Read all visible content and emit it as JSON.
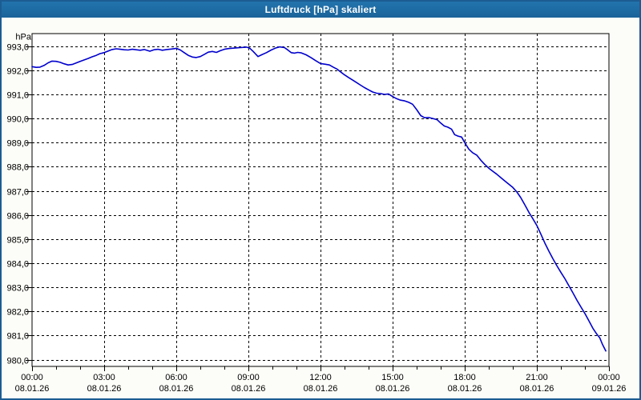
{
  "window": {
    "title": "Luftdruck [hPa] skaliert"
  },
  "colors": {
    "titlebar_bg": "#1e6ba3",
    "window_border": "#1c5c92",
    "outer_bg": "#fafaf5",
    "plot_bg": "#ffffff",
    "grid": "#000000",
    "curve": "#0000cd",
    "label_text": "#000000"
  },
  "chart_data": {
    "type": "line",
    "title": "Luftdruck [hPa] skaliert",
    "ylabel": "hPa",
    "unit_label": "hPa",
    "grid": "dashed",
    "ylim": [
      980,
      993
    ],
    "y_tick_step": 1,
    "y_tick_labels": [
      "993,0",
      "992,0",
      "991,0",
      "990,0",
      "989,0",
      "988,0",
      "987,0",
      "986,0",
      "985,0",
      "984,0",
      "983,0",
      "982,0",
      "981,0",
      "980,0"
    ],
    "x_hours_range": [
      0,
      24
    ],
    "x_major_step_hours": 3,
    "x_minor_step_hours": 1,
    "x_ticks": [
      {
        "time": "00:00",
        "date": "08.01.26"
      },
      {
        "time": "03:00",
        "date": "08.01.26"
      },
      {
        "time": "06:00",
        "date": "08.01.26"
      },
      {
        "time": "09:00",
        "date": "08.01.26"
      },
      {
        "time": "12:00",
        "date": "08.01.26"
      },
      {
        "time": "15:00",
        "date": "08.01.26"
      },
      {
        "time": "18:00",
        "date": "08.01.26"
      },
      {
        "time": "21:00",
        "date": "08.01.26"
      },
      {
        "time": "00:00",
        "date": "09.01.26"
      }
    ],
    "series": [
      {
        "name": "Luftdruck",
        "color": "#0000cd",
        "points": [
          [
            0,
            992.15
          ],
          [
            0.17,
            992.12
          ],
          [
            0.33,
            992.13
          ],
          [
            0.5,
            992.2
          ],
          [
            0.67,
            992.31
          ],
          [
            0.83,
            992.38
          ],
          [
            1.0,
            992.37
          ],
          [
            1.17,
            992.33
          ],
          [
            1.33,
            992.27
          ],
          [
            1.5,
            992.22
          ],
          [
            1.67,
            992.24
          ],
          [
            1.83,
            992.3
          ],
          [
            2.0,
            992.37
          ],
          [
            2.17,
            992.43
          ],
          [
            2.33,
            992.49
          ],
          [
            2.5,
            992.56
          ],
          [
            2.67,
            992.62
          ],
          [
            2.83,
            992.69
          ],
          [
            3.0,
            992.73
          ],
          [
            3.17,
            992.8
          ],
          [
            3.33,
            992.86
          ],
          [
            3.5,
            992.89
          ],
          [
            3.67,
            992.87
          ],
          [
            3.83,
            992.85
          ],
          [
            4.0,
            992.84
          ],
          [
            4.17,
            992.87
          ],
          [
            4.33,
            992.85
          ],
          [
            4.5,
            992.83
          ],
          [
            4.67,
            992.86
          ],
          [
            4.9,
            992.79
          ],
          [
            5.07,
            992.85
          ],
          [
            5.25,
            992.87
          ],
          [
            5.42,
            992.83
          ],
          [
            5.6,
            992.86
          ],
          [
            5.8,
            992.88
          ],
          [
            6.0,
            992.91
          ],
          [
            6.17,
            992.84
          ],
          [
            6.33,
            992.73
          ],
          [
            6.5,
            992.62
          ],
          [
            6.67,
            992.55
          ],
          [
            6.83,
            992.53
          ],
          [
            7.0,
            992.57
          ],
          [
            7.17,
            992.66
          ],
          [
            7.33,
            992.75
          ],
          [
            7.5,
            992.78
          ],
          [
            7.67,
            992.74
          ],
          [
            7.83,
            992.81
          ],
          [
            8.0,
            992.87
          ],
          [
            8.17,
            992.9
          ],
          [
            8.42,
            992.92
          ],
          [
            8.67,
            992.94
          ],
          [
            8.92,
            992.96
          ],
          [
            9.05,
            992.92
          ],
          [
            9.2,
            992.78
          ],
          [
            9.4,
            992.57
          ],
          [
            9.55,
            992.64
          ],
          [
            9.75,
            992.73
          ],
          [
            9.95,
            992.84
          ],
          [
            10.15,
            992.93
          ],
          [
            10.3,
            992.97
          ],
          [
            10.5,
            992.94
          ],
          [
            10.63,
            992.85
          ],
          [
            10.78,
            992.73
          ],
          [
            10.92,
            992.71
          ],
          [
            11.05,
            992.74
          ],
          [
            11.2,
            992.72
          ],
          [
            11.4,
            992.64
          ],
          [
            11.6,
            992.53
          ],
          [
            11.8,
            992.4
          ],
          [
            12.0,
            992.28
          ],
          [
            12.2,
            992.25
          ],
          [
            12.37,
            992.22
          ],
          [
            12.53,
            992.13
          ],
          [
            12.7,
            992.04
          ],
          [
            12.85,
            991.92
          ],
          [
            13.0,
            991.81
          ],
          [
            13.17,
            991.7
          ],
          [
            13.33,
            991.6
          ],
          [
            13.5,
            991.49
          ],
          [
            13.67,
            991.38
          ],
          [
            13.83,
            991.28
          ],
          [
            14.0,
            991.19
          ],
          [
            14.17,
            991.1
          ],
          [
            14.33,
            991.05
          ],
          [
            14.5,
            991.03
          ],
          [
            14.67,
            991.0
          ],
          [
            14.83,
            991.02
          ],
          [
            15.0,
            990.91
          ],
          [
            15.17,
            990.82
          ],
          [
            15.33,
            990.76
          ],
          [
            15.5,
            990.73
          ],
          [
            15.67,
            990.67
          ],
          [
            15.83,
            990.59
          ],
          [
            16.0,
            990.37
          ],
          [
            16.17,
            990.12
          ],
          [
            16.33,
            990.03
          ],
          [
            16.5,
            990.04
          ],
          [
            16.67,
            990.0
          ],
          [
            16.85,
            989.95
          ],
          [
            17.0,
            989.81
          ],
          [
            17.15,
            989.69
          ],
          [
            17.3,
            989.64
          ],
          [
            17.45,
            989.56
          ],
          [
            17.58,
            989.33
          ],
          [
            17.72,
            989.27
          ],
          [
            17.87,
            989.23
          ],
          [
            18.0,
            989.0
          ],
          [
            18.17,
            988.73
          ],
          [
            18.33,
            988.58
          ],
          [
            18.5,
            988.48
          ],
          [
            18.67,
            988.27
          ],
          [
            18.83,
            988.1
          ],
          [
            19.0,
            987.94
          ],
          [
            19.17,
            987.81
          ],
          [
            19.33,
            987.69
          ],
          [
            19.5,
            987.55
          ],
          [
            19.67,
            987.41
          ],
          [
            19.83,
            987.28
          ],
          [
            20.0,
            987.14
          ],
          [
            20.17,
            986.95
          ],
          [
            20.33,
            986.72
          ],
          [
            20.5,
            986.42
          ],
          [
            20.67,
            986.11
          ],
          [
            20.83,
            985.85
          ],
          [
            21.0,
            985.56
          ],
          [
            21.17,
            985.2
          ],
          [
            21.33,
            984.84
          ],
          [
            21.5,
            984.5
          ],
          [
            21.67,
            984.18
          ],
          [
            21.83,
            983.9
          ],
          [
            22.0,
            983.62
          ],
          [
            22.17,
            983.35
          ],
          [
            22.33,
            983.07
          ],
          [
            22.5,
            982.77
          ],
          [
            22.67,
            982.46
          ],
          [
            22.83,
            982.19
          ],
          [
            23.0,
            981.91
          ],
          [
            23.17,
            981.6
          ],
          [
            23.33,
            981.3
          ],
          [
            23.5,
            981.05
          ],
          [
            23.62,
            980.9
          ],
          [
            23.73,
            980.63
          ],
          [
            23.87,
            980.36
          ]
        ]
      }
    ]
  }
}
